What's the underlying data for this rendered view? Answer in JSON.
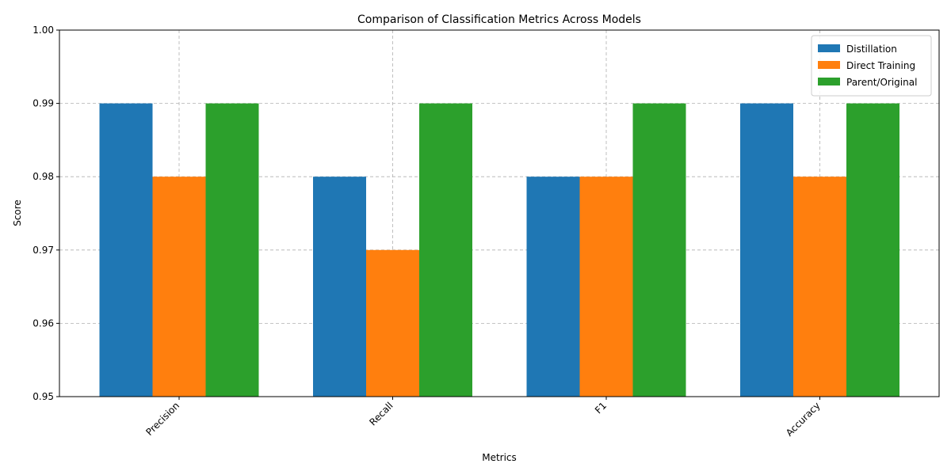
{
  "chart_data": {
    "type": "bar",
    "title": "Comparison of Classification Metrics Across Models",
    "xlabel": "Metrics",
    "ylabel": "Score",
    "categories": [
      "Precision",
      "Recall",
      "F1",
      "Accuracy"
    ],
    "series": [
      {
        "name": "Distillation",
        "values": [
          0.99,
          0.98,
          0.98,
          0.99
        ],
        "color": "#1f77b4"
      },
      {
        "name": "Direct Training",
        "values": [
          0.98,
          0.97,
          0.98,
          0.98
        ],
        "color": "#ff7f0e"
      },
      {
        "name": "Parent/Original",
        "values": [
          0.99,
          0.99,
          0.99,
          0.99
        ],
        "color": "#2ca02c"
      }
    ],
    "ylim": [
      0.95,
      1.0
    ],
    "yticks": [
      0.95,
      0.96,
      0.97,
      0.98,
      0.99,
      1.0
    ],
    "ytick_labels": [
      "0.95",
      "0.96",
      "0.97",
      "0.98",
      "0.99",
      "1.00"
    ],
    "grid": true,
    "legend_position": "top-right"
  }
}
